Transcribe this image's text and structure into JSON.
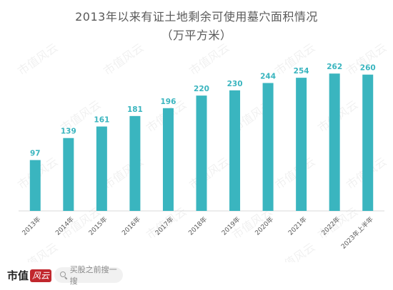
{
  "chart_data": {
    "type": "bar",
    "title": "2013年以来有证土地剩余可使用墓穴面积情况",
    "subtitle": "（万平方米）",
    "categories": [
      "2013年",
      "2014年",
      "2015年",
      "2016年",
      "2017年",
      "2018年",
      "2019年",
      "2020年",
      "2021年",
      "2022年",
      "2023年上半年"
    ],
    "values": [
      97,
      139,
      161,
      181,
      196,
      220,
      230,
      244,
      254,
      262,
      260
    ],
    "ylim": [
      0,
      280
    ],
    "grid": false,
    "legend": "none",
    "bar_color": "#3ab5bf",
    "label_color": "#3ab5bf"
  },
  "watermark": {
    "text": "市值风云"
  },
  "footer": {
    "brand_text": "市值",
    "brand_seal": "风云",
    "search_icon": "search-icon",
    "search_text": "买股之前搜一搜"
  }
}
